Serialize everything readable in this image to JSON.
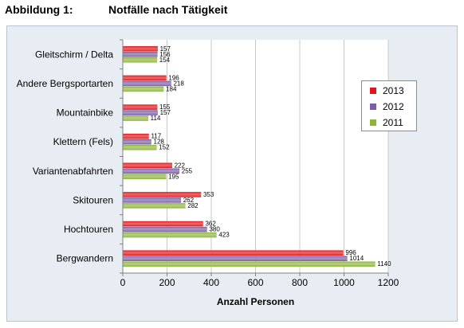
{
  "heading": {
    "figure_label": "Abbildung 1:",
    "title": "Notfälle nach Tätigkeit"
  },
  "chart_data": {
    "type": "bar",
    "orientation": "horizontal",
    "categories": [
      "Gleitschirm / Delta",
      "Andere Bergsportarten",
      "Mountainbike",
      "Klettern (Fels)",
      "Variantenabfahrten",
      "Skitouren",
      "Hochtouren",
      "Bergwandern"
    ],
    "series": [
      {
        "name": "2013",
        "color": "#e3151a",
        "values": [
          157,
          196,
          155,
          117,
          222,
          353,
          362,
          996
        ]
      },
      {
        "name": "2012",
        "color": "#7b5ea7",
        "values": [
          156,
          218,
          157,
          128,
          255,
          262,
          380,
          1014
        ]
      },
      {
        "name": "2011",
        "color": "#8db53c",
        "values": [
          154,
          184,
          114,
          152,
          195,
          282,
          423,
          1140
        ]
      }
    ],
    "xlabel": "Anzahl Personen",
    "ylabel": "",
    "xlim": [
      0,
      1200
    ],
    "xticks": [
      0,
      200,
      400,
      600,
      800,
      1000,
      1200
    ],
    "grid": true,
    "legend_position": "right"
  }
}
